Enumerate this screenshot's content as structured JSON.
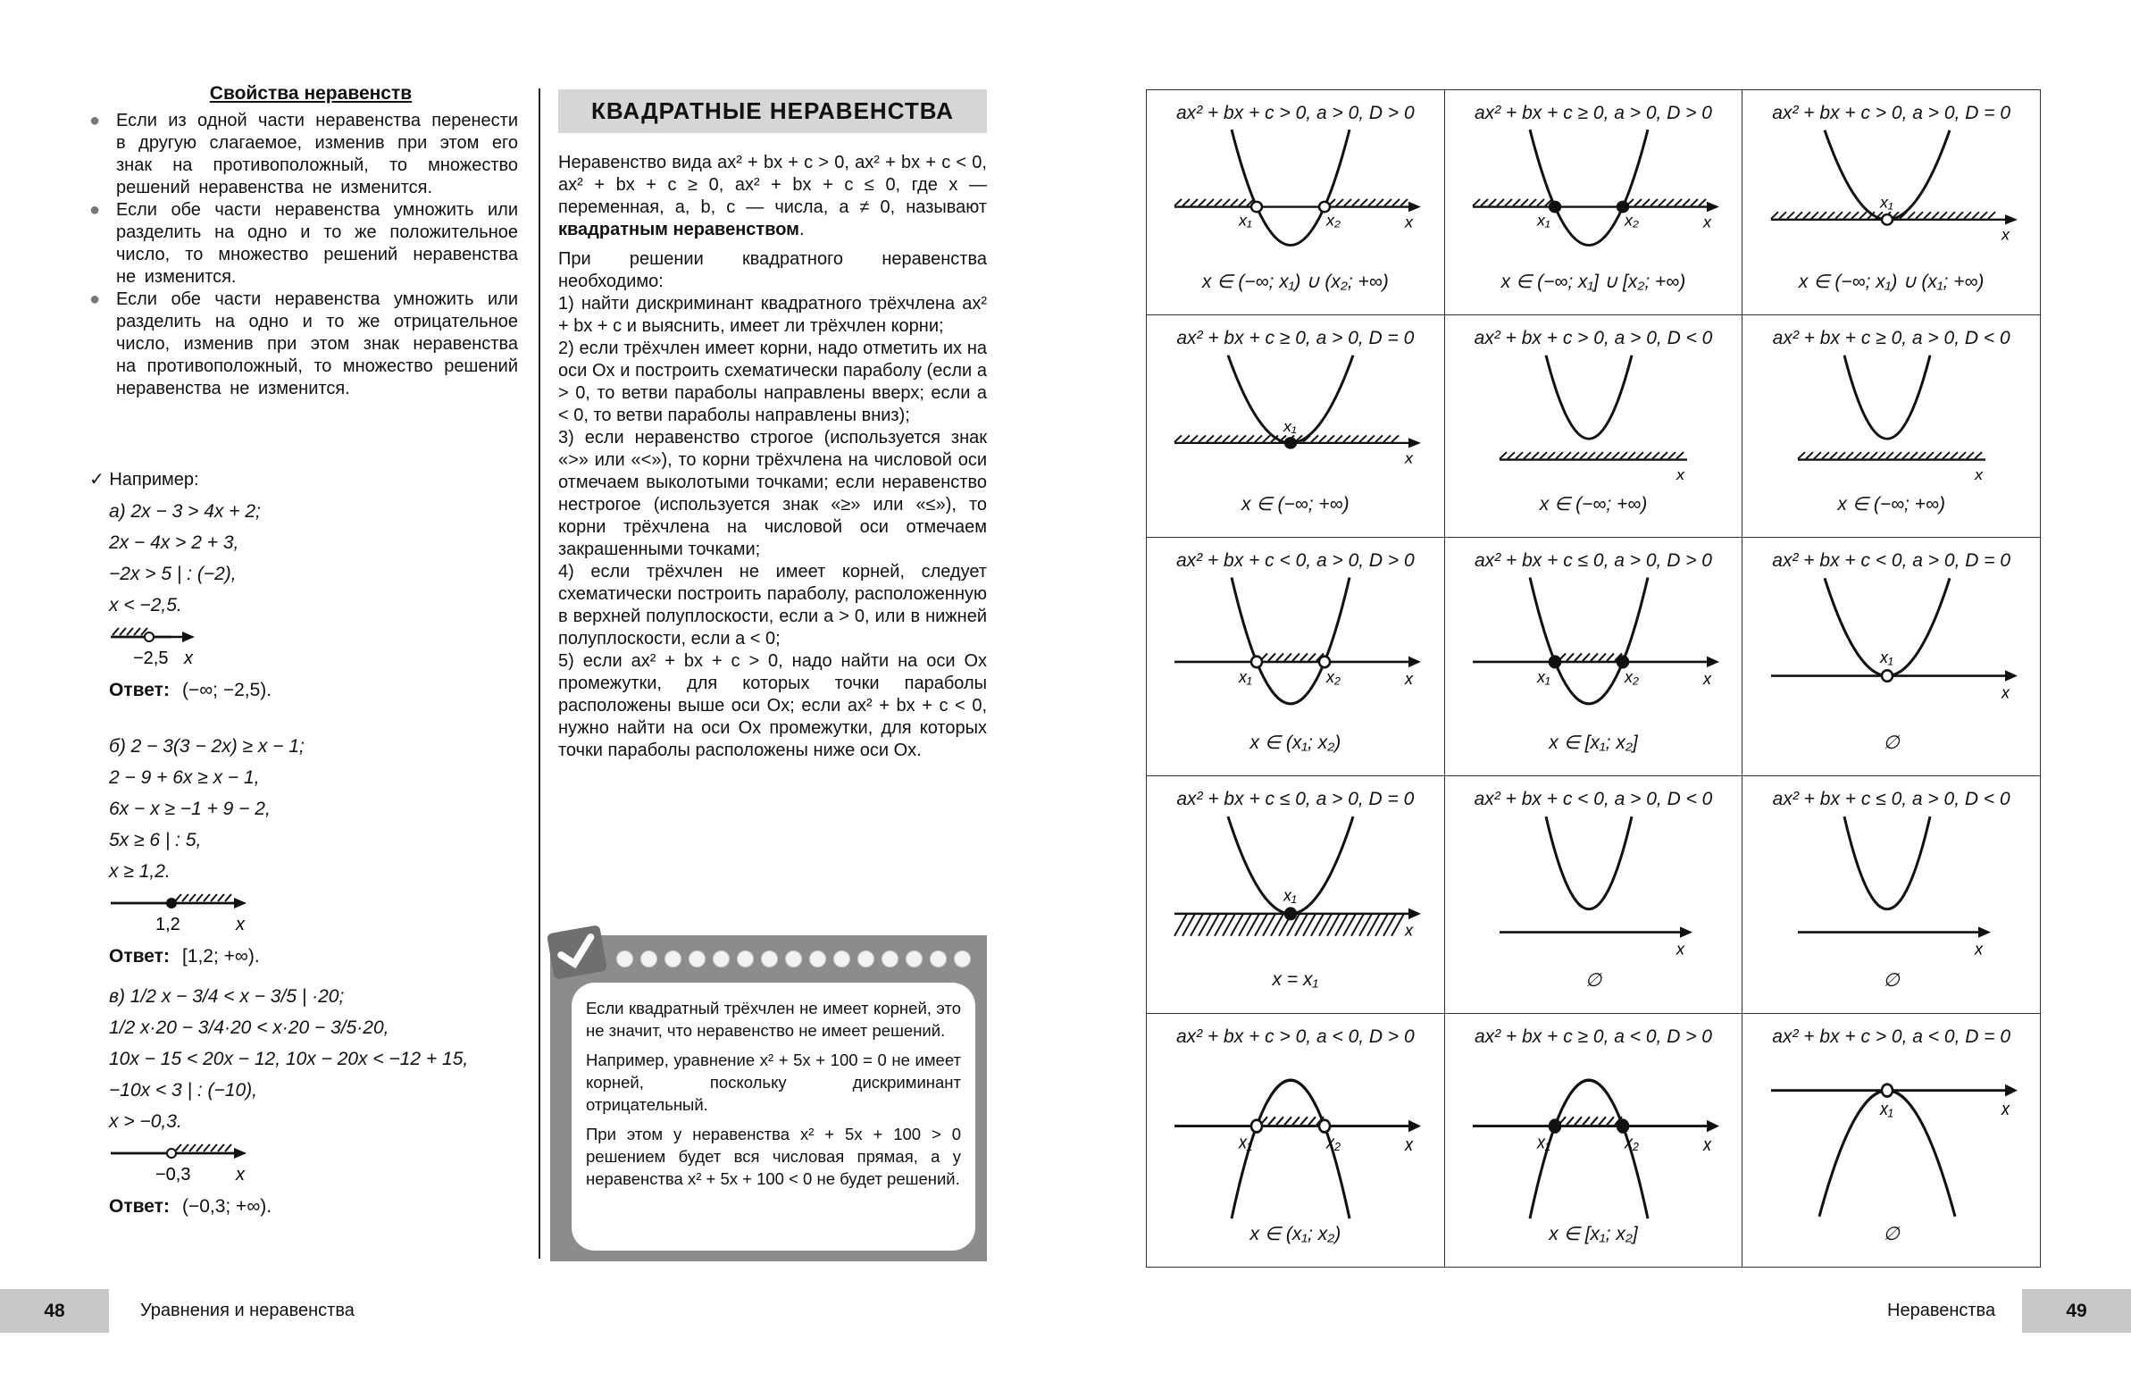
{
  "left_page": {
    "title": "Свойства неравенств",
    "bullets": [
      "Если из одной части неравенства перенести в другую слагаемое, изменив при этом его знак на противоположный, то множество решений неравенства не изменится.",
      "Если обе части неравенства умножить или разделить на одно и то же положительное число, то множество решений неравенства не изменится.",
      "Если обе части неравенства умножить или разделить на одно и то же отрицательное число, изменив при этом знак неравенства на противоположный, то множество решений неравенства не изменится."
    ],
    "example_heading": "Например:",
    "examples": [
      {
        "lines": [
          "а) 2x − 3 > 4x + 2;",
          "2x − 4x > 2 + 3,",
          "−2x > 5 | : (−2),",
          "x < −2,5."
        ],
        "number_line": {
          "point_label": "−2,5",
          "point": "open",
          "shade": "left",
          "axis_label": "x"
        },
        "answer_label": "Ответ:",
        "answer": "(−∞; −2,5)."
      },
      {
        "lines": [
          "б) 2 − 3(3 − 2x) ≥ x − 1;",
          "2 − 9 + 6x ≥ x − 1,",
          "6x − x ≥ −1 + 9 − 2,",
          "5x ≥ 6 | : 5,",
          "x ≥ 1,2."
        ],
        "number_line": {
          "point_label": "1,2",
          "point": "filled",
          "shade": "right",
          "axis_label": "x"
        },
        "answer_label": "Ответ:",
        "answer": "[1,2; +∞)."
      },
      {
        "lines": [
          "в) 1/2 x − 3/4 < x − 3/5 | ·20;",
          "1/2 x·20 − 3/4·20 < x·20 − 3/5·20,",
          "10x − 15 < 20x − 12,   10x − 20x < −12 + 15,",
          "−10x < 3 | : (−10),",
          "x > −0,3."
        ],
        "number_line": {
          "point_label": "−0,3",
          "point": "open",
          "shade": "right",
          "axis_label": "x"
        },
        "answer_label": "Ответ:",
        "answer": "(−0,3; +∞)."
      }
    ],
    "footer": {
      "page_number": "48",
      "running_title": "Уравнения и неравенства"
    }
  },
  "middle": {
    "header": "КВАДРАТНЫЕ НЕРАВЕНСТВА",
    "definition_pre": "Неравенство вида ax² + bx + c > 0, ax² + bx + c < 0, ax² + bx + c ≥ 0, ax² + bx + c ≤ 0, где x — переменная, a, b, c — числа, a ≠ 0, называют ",
    "definition_bold": "квадратным неравенством",
    "definition_post": ".",
    "intro": "При решении квадратного неравенства необходимо:",
    "steps": [
      "1) найти дискриминант квадратного трёхчлена ax² + bx + c и выяснить, имеет ли трёхчлен корни;",
      "2) если трёхчлен имеет корни, надо отметить их на оси Ox и построить схематически параболу (если a > 0, то ветви параболы направлены вверх; если a < 0, то ветви параболы направлены вниз);",
      "3) если неравенство строгое (используется знак «>» или «<»), то корни трёхчлена на числовой оси отмечаем выколотыми точками; если неравенство нестрогое (используется знак «≥» или «≤»), то корни трёхчлена на числовой оси отмечаем закрашенными точками;",
      "4) если трёхчлен не имеет корней, следует схематически построить параболу, расположенную в верхней полуплоскости, если a > 0, или в нижней полуплоскости, если a < 0;",
      "5) если ax² + bx + c > 0, надо найти на оси Ox промежутки, для которых точки параболы расположены выше оси Ox; если ax² + bx + c < 0, нужно найти на оси Ox промежутки, для которых точки параболы расположены ниже оси Ox."
    ],
    "tip": [
      "Если квадратный трёхчлен не имеет корней, это не значит, что неравенство не имеет решений.",
      "Например, уравнение x² + 5x + 100 = 0 не имеет корней, поскольку дискриминант отрицательный.",
      "При этом у неравенства x² + 5x + 100 > 0 решением будет вся числовая прямая, а у неравенства x² + 5x + 100 < 0 не будет решений."
    ]
  },
  "table": {
    "root_labels": [
      "x₁",
      "x₂"
    ],
    "axis_label": "x",
    "cells": [
      {
        "formula": "ax² + bx + c > 0,  a > 0,  D > 0",
        "dir": "up",
        "roots": 2,
        "point": "open",
        "shade": "outside",
        "answer": "x ∈ (−∞; x₁) ∪ (x₂; +∞)"
      },
      {
        "formula": "ax² + bx + c ≥ 0,  a > 0,  D > 0",
        "dir": "up",
        "roots": 2,
        "point": "filled",
        "shade": "outside",
        "answer": "x ∈ (−∞; x₁] ∪ [x₂; +∞)"
      },
      {
        "formula": "ax² + bx + c > 0,  a > 0,  D = 0",
        "dir": "up",
        "roots": 1,
        "point": "open",
        "shade": "all",
        "answer": "x ∈ (−∞; x₁) ∪ (x₁; +∞)"
      },
      {
        "formula": "ax² + bx + c ≥ 0,  a > 0,  D = 0",
        "dir": "up",
        "roots": 1,
        "point": "filled",
        "shade": "all",
        "answer": "x ∈ (−∞; +∞)"
      },
      {
        "formula": "ax² + bx + c > 0,  a > 0,  D < 0",
        "dir": "up",
        "roots": 0,
        "point": "none",
        "shade": "all",
        "answer": "x ∈ (−∞; +∞)"
      },
      {
        "formula": "ax² + bx + c ≥ 0,  a > 0,  D < 0",
        "dir": "up",
        "roots": 0,
        "point": "none",
        "shade": "all",
        "answer": "x ∈ (−∞; +∞)"
      },
      {
        "formula": "ax² + bx + c < 0,  a > 0,  D > 0",
        "dir": "up",
        "roots": 2,
        "point": "open",
        "shade": "inside",
        "answer": "x ∈ (x₁; x₂)"
      },
      {
        "formula": "ax² + bx + c ≤ 0,  a > 0,  D > 0",
        "dir": "up",
        "roots": 2,
        "point": "filled",
        "shade": "inside",
        "answer": "x ∈ [x₁; x₂]"
      },
      {
        "formula": "ax² + bx + c < 0,  a > 0,  D = 0",
        "dir": "up",
        "roots": 1,
        "point": "open",
        "shade": "none",
        "answer": "∅"
      },
      {
        "formula": "ax² + bx + c ≤ 0,  a > 0,  D = 0",
        "dir": "up",
        "roots": 1,
        "point": "filled",
        "shade": "below",
        "answer": "x = x₁"
      },
      {
        "formula": "ax² + bx + c < 0,  a > 0,  D < 0",
        "dir": "up",
        "roots": 0,
        "point": "none",
        "shade": "none",
        "answer": "∅"
      },
      {
        "formula": "ax² + bx + c ≤ 0,  a > 0,  D < 0",
        "dir": "up",
        "roots": 0,
        "point": "none",
        "shade": "none",
        "answer": "∅"
      },
      {
        "formula": "ax² + bx + c > 0,  a < 0,  D > 0",
        "dir": "down",
        "roots": 2,
        "point": "open",
        "shade": "inside",
        "answer": "x ∈ (x₁; x₂)"
      },
      {
        "formula": "ax² + bx + c ≥ 0,  a < 0,  D > 0",
        "dir": "down",
        "roots": 2,
        "point": "filled",
        "shade": "inside",
        "answer": "x ∈ [x₁; x₂]"
      },
      {
        "formula": "ax² + bx + c > 0,  a < 0,  D = 0",
        "dir": "down",
        "roots": 1,
        "point": "open",
        "shade": "none",
        "answer": "∅"
      }
    ],
    "footer": {
      "page_number": "49",
      "running_title": "Неравенства"
    }
  }
}
